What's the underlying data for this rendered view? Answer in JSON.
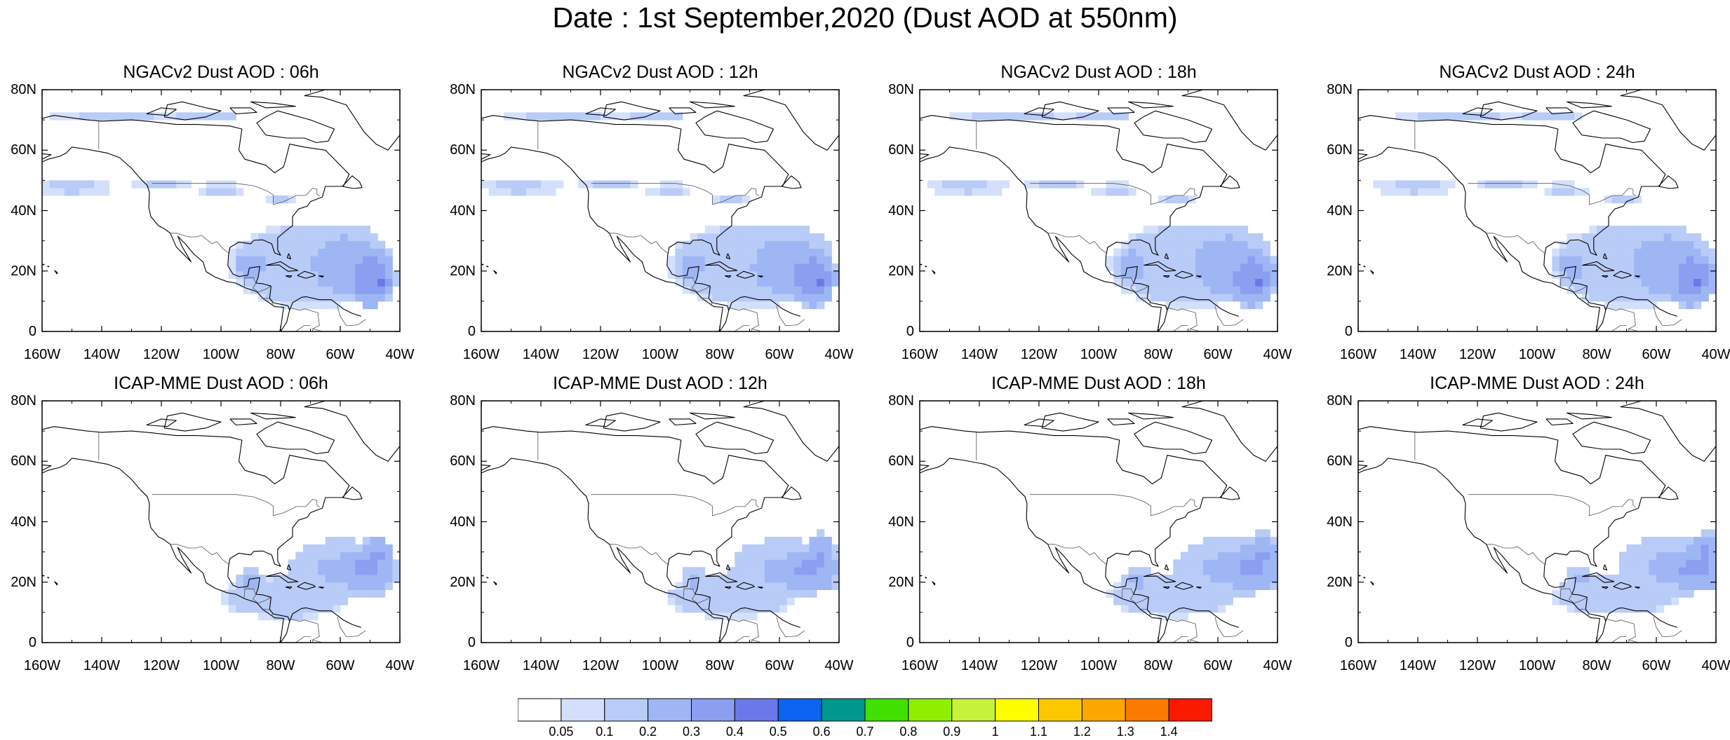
{
  "figure": {
    "title": "Date : 1st September,2020 (Dust AOD at 550nm)"
  },
  "axes": {
    "lat_labels": [
      "80N",
      "60N",
      "40N",
      "20N",
      "0"
    ],
    "lat_values": [
      80,
      60,
      40,
      20,
      0
    ],
    "lon_labels": [
      "160W",
      "140W",
      "120W",
      "100W",
      "80W",
      "60W",
      "40W"
    ],
    "lon_values": [
      -160,
      -140,
      -120,
      -100,
      -80,
      -60,
      -40
    ],
    "lon_range": [
      -160,
      -40
    ],
    "lat_range": [
      0,
      80
    ]
  },
  "panels": [
    {
      "title": "NGACv2 Dust AOD : 06h",
      "model": "NGACv2",
      "lead": "06h"
    },
    {
      "title": "NGACv2 Dust AOD : 12h",
      "model": "NGACv2",
      "lead": "12h"
    },
    {
      "title": "NGACv2 Dust AOD : 18h",
      "model": "NGACv2",
      "lead": "18h"
    },
    {
      "title": "NGACv2 Dust AOD : 24h",
      "model": "NGACv2",
      "lead": "24h"
    },
    {
      "title": "ICAP-MME Dust AOD : 06h",
      "model": "ICAP-MME",
      "lead": "06h"
    },
    {
      "title": "ICAP-MME Dust AOD : 12h",
      "model": "ICAP-MME",
      "lead": "12h"
    },
    {
      "title": "ICAP-MME Dust AOD : 18h",
      "model": "ICAP-MME",
      "lead": "18h"
    },
    {
      "title": "ICAP-MME Dust AOD : 24h",
      "model": "ICAP-MME",
      "lead": "24h"
    }
  ],
  "colorbar": {
    "labels": [
      "0.05",
      "0.1",
      "0.2",
      "0.3",
      "0.4",
      "0.5",
      "0.6",
      "0.7",
      "0.8",
      "0.9",
      "1",
      "1.1",
      "1.2",
      "1.3",
      "1.4"
    ],
    "colors": [
      "#ffffff",
      "#d4e0fb",
      "#b9cbf7",
      "#9fb6f4",
      "#8a9ff0",
      "#6b78ea",
      "#0a64f0",
      "#00978f",
      "#40e000",
      "#8ef000",
      "#c6f23c",
      "#fefe00",
      "#fbc800",
      "#fba800",
      "#fb7a00",
      "#fa1a00"
    ]
  },
  "chart_data": {
    "type": "heatmap",
    "title": "Date : 1st September,2020 (Dust AOD at 550nm)",
    "variable": "Dust AOD at 550nm",
    "region": {
      "lon": [
        -160,
        -40
      ],
      "lat": [
        0,
        80
      ]
    },
    "levels": [
      0.05,
      0.1,
      0.2,
      0.3,
      0.4,
      0.5,
      0.6,
      0.7,
      0.8,
      0.9,
      1,
      1.1,
      1.2,
      1.3,
      1.4
    ],
    "dust_regions": [
      {
        "panel": "NGACv2 Dust AOD : 06h",
        "lon": [
          -100,
          -40
        ],
        "lat": [
          5,
          35
        ],
        "peak_aod": 0.4
      },
      {
        "panel": "NGACv2 Dust AOD : 12h",
        "lon": [
          -100,
          -40
        ],
        "lat": [
          5,
          35
        ],
        "peak_aod": 0.4
      },
      {
        "panel": "NGACv2 Dust AOD : 18h",
        "lon": [
          -100,
          -40
        ],
        "lat": [
          5,
          35
        ],
        "peak_aod": 0.4
      },
      {
        "panel": "NGACv2 Dust AOD : 24h",
        "lon": [
          -100,
          -40
        ],
        "lat": [
          5,
          35
        ],
        "peak_aod": 0.4
      },
      {
        "panel": "ICAP-MME Dust AOD : 06h",
        "lon": [
          -100,
          -40
        ],
        "lat": [
          5,
          38
        ],
        "peak_aod": 0.4
      },
      {
        "panel": "ICAP-MME Dust AOD : 12h",
        "lon": [
          -100,
          -40
        ],
        "lat": [
          5,
          38
        ],
        "peak_aod": 0.3
      },
      {
        "panel": "ICAP-MME Dust AOD : 18h",
        "lon": [
          -100,
          -40
        ],
        "lat": [
          5,
          38
        ],
        "peak_aod": 0.3
      },
      {
        "panel": "ICAP-MME Dust AOD : 24h",
        "lon": [
          -100,
          -40
        ],
        "lat": [
          5,
          38
        ],
        "peak_aod": 0.3
      }
    ]
  }
}
